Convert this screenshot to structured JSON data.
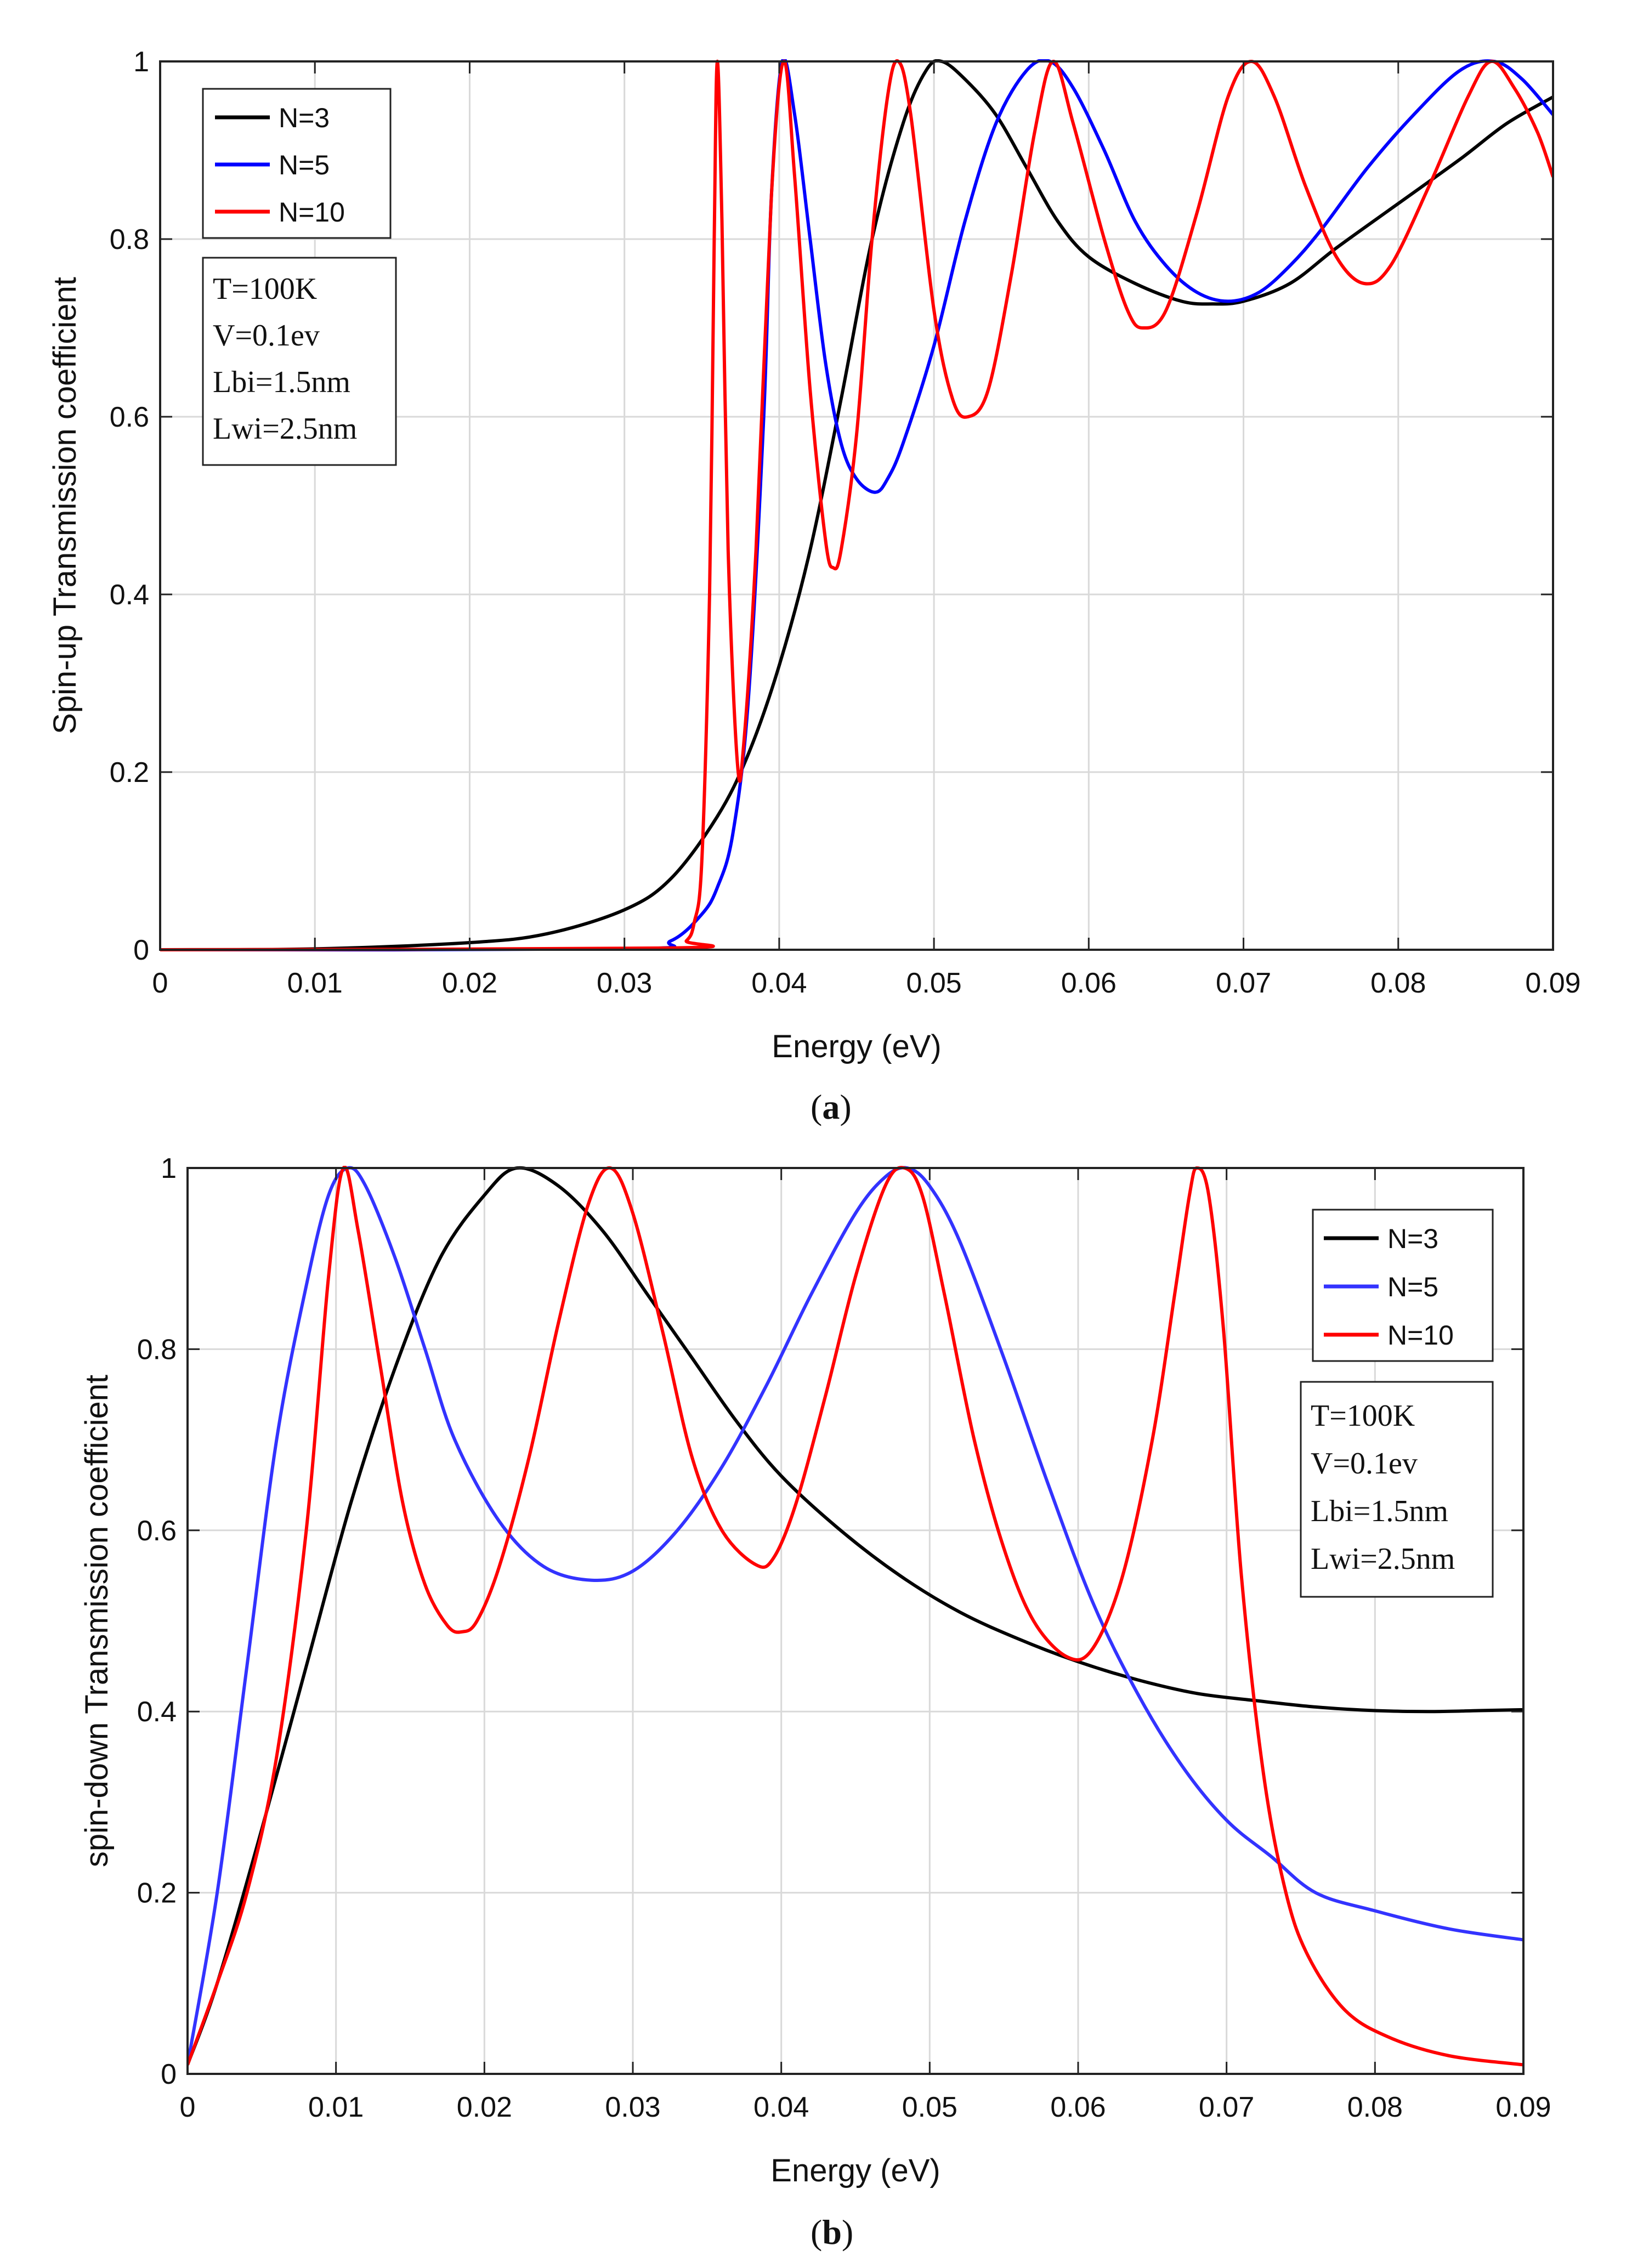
{
  "chart_data": [
    {
      "id": "a",
      "type": "line",
      "caption_label": "a",
      "xlabel": "Energy (eV)",
      "ylabel": "Spin-up Transmission coefficient",
      "xlim": [
        0,
        0.09
      ],
      "ylim": [
        0,
        1
      ],
      "x_ticks": [
        "0",
        "0.01",
        "0.02",
        "0.03",
        "0.04",
        "0.05",
        "0.06",
        "0.07",
        "0.08",
        "0.09"
      ],
      "y_ticks": [
        "0",
        "0.2",
        "0.4",
        "0.6",
        "0.8",
        "1"
      ],
      "grid": true,
      "legend_position": "top-left",
      "legend": [
        "N=3",
        "N=5",
        "N=10"
      ],
      "parameters": [
        "T=100K",
        "V=0.1ev",
        "Lbi=1.5nm",
        "Lwi=2.5nm"
      ],
      "series": [
        {
          "name": "N=3",
          "color": "#000000",
          "points": [
            [
              0,
              0
            ],
            [
              0.01,
              0.001
            ],
            [
              0.02,
              0.008
            ],
            [
              0.025,
              0.018
            ],
            [
              0.03,
              0.045
            ],
            [
              0.033,
              0.08
            ],
            [
              0.036,
              0.15
            ],
            [
              0.038,
              0.22
            ],
            [
              0.04,
              0.32
            ],
            [
              0.042,
              0.45
            ],
            [
              0.044,
              0.62
            ],
            [
              0.046,
              0.8
            ],
            [
              0.048,
              0.93
            ],
            [
              0.0495,
              0.99
            ],
            [
              0.0505,
              1.0
            ],
            [
              0.052,
              0.98
            ],
            [
              0.054,
              0.94
            ],
            [
              0.056,
              0.88
            ],
            [
              0.058,
              0.82
            ],
            [
              0.06,
              0.78
            ],
            [
              0.063,
              0.75
            ],
            [
              0.066,
              0.73
            ],
            [
              0.068,
              0.727
            ],
            [
              0.07,
              0.73
            ],
            [
              0.073,
              0.75
            ],
            [
              0.076,
              0.79
            ],
            [
              0.08,
              0.84
            ],
            [
              0.084,
              0.89
            ],
            [
              0.087,
              0.93
            ],
            [
              0.09,
              0.96
            ]
          ]
        },
        {
          "name": "N=5",
          "color": "#0000ff",
          "points": [
            [
              0,
              0
            ],
            [
              0.03,
              0.001
            ],
            [
              0.033,
              0.01
            ],
            [
              0.035,
              0.04
            ],
            [
              0.036,
              0.07
            ],
            [
              0.037,
              0.13
            ],
            [
              0.038,
              0.28
            ],
            [
              0.039,
              0.6
            ],
            [
              0.0395,
              0.85
            ],
            [
              0.0402,
              1.0
            ],
            [
              0.041,
              0.94
            ],
            [
              0.042,
              0.8
            ],
            [
              0.043,
              0.66
            ],
            [
              0.044,
              0.57
            ],
            [
              0.045,
              0.53
            ],
            [
              0.0462,
              0.515
            ],
            [
              0.047,
              0.53
            ],
            [
              0.048,
              0.57
            ],
            [
              0.05,
              0.68
            ],
            [
              0.052,
              0.82
            ],
            [
              0.054,
              0.93
            ],
            [
              0.056,
              0.99
            ],
            [
              0.0575,
              1.0
            ],
            [
              0.059,
              0.97
            ],
            [
              0.061,
              0.9
            ],
            [
              0.063,
              0.82
            ],
            [
              0.065,
              0.77
            ],
            [
              0.067,
              0.74
            ],
            [
              0.069,
              0.73
            ],
            [
              0.071,
              0.74
            ],
            [
              0.073,
              0.77
            ],
            [
              0.075,
              0.81
            ],
            [
              0.078,
              0.88
            ],
            [
              0.081,
              0.94
            ],
            [
              0.084,
              0.99
            ],
            [
              0.0862,
              1.0
            ],
            [
              0.088,
              0.98
            ],
            [
              0.09,
              0.94
            ]
          ]
        },
        {
          "name": "N=10",
          "color": "#ff0000",
          "points": [
            [
              0,
              0
            ],
            [
              0.033,
              0.002
            ],
            [
              0.034,
              0.01
            ],
            [
              0.0345,
              0.03
            ],
            [
              0.035,
              0.1
            ],
            [
              0.0355,
              0.4
            ],
            [
              0.0358,
              0.8
            ],
            [
              0.036,
              1.0
            ],
            [
              0.0363,
              0.82
            ],
            [
              0.0367,
              0.45
            ],
            [
              0.0373,
              0.21
            ],
            [
              0.0377,
              0.23
            ],
            [
              0.0385,
              0.45
            ],
            [
              0.0395,
              0.85
            ],
            [
              0.0403,
              1.0
            ],
            [
              0.041,
              0.87
            ],
            [
              0.042,
              0.63
            ],
            [
              0.043,
              0.46
            ],
            [
              0.0435,
              0.43
            ],
            [
              0.044,
              0.45
            ],
            [
              0.045,
              0.58
            ],
            [
              0.046,
              0.8
            ],
            [
              0.047,
              0.96
            ],
            [
              0.0477,
              1.0
            ],
            [
              0.0485,
              0.94
            ],
            [
              0.05,
              0.72
            ],
            [
              0.0512,
              0.62
            ],
            [
              0.0522,
              0.6
            ],
            [
              0.0535,
              0.63
            ],
            [
              0.055,
              0.76
            ],
            [
              0.0565,
              0.92
            ],
            [
              0.0577,
              1.0
            ],
            [
              0.059,
              0.93
            ],
            [
              0.061,
              0.8
            ],
            [
              0.0625,
              0.72
            ],
            [
              0.0635,
              0.7
            ],
            [
              0.065,
              0.72
            ],
            [
              0.067,
              0.83
            ],
            [
              0.069,
              0.96
            ],
            [
              0.0705,
              1.0
            ],
            [
              0.072,
              0.96
            ],
            [
              0.074,
              0.86
            ],
            [
              0.076,
              0.78
            ],
            [
              0.0778,
              0.75
            ],
            [
              0.0795,
              0.77
            ],
            [
              0.082,
              0.86
            ],
            [
              0.0845,
              0.96
            ],
            [
              0.086,
              1.0
            ],
            [
              0.0875,
              0.97
            ],
            [
              0.089,
              0.92
            ],
            [
              0.09,
              0.87
            ]
          ]
        }
      ]
    },
    {
      "id": "b",
      "type": "line",
      "caption_label": "b",
      "xlabel": "Energy (eV)",
      "ylabel": "spin-down Transmission coefficient",
      "xlim": [
        0,
        0.09
      ],
      "ylim": [
        0,
        1
      ],
      "x_ticks": [
        "0",
        "0.01",
        "0.02",
        "0.03",
        "0.04",
        "0.05",
        "0.06",
        "0.07",
        "0.08",
        "0.09"
      ],
      "y_ticks": [
        "0",
        "0.2",
        "0.4",
        "0.6",
        "0.8",
        "1"
      ],
      "grid": true,
      "legend_position": "top-right",
      "legend": [
        "N=3",
        "N=5",
        "N=10"
      ],
      "parameters": [
        "T=100K",
        "V=0.1ev",
        "Lbi=1.5nm",
        "Lwi=2.5nm"
      ],
      "series": [
        {
          "name": "N=3",
          "color": "#000000",
          "points": [
            [
              0,
              0.01
            ],
            [
              0.002,
              0.1
            ],
            [
              0.005,
              0.27
            ],
            [
              0.008,
              0.45
            ],
            [
              0.011,
              0.63
            ],
            [
              0.014,
              0.78
            ],
            [
              0.017,
              0.9
            ],
            [
              0.02,
              0.97
            ],
            [
              0.0222,
              1.0
            ],
            [
              0.025,
              0.98
            ],
            [
              0.028,
              0.93
            ],
            [
              0.031,
              0.86
            ],
            [
              0.034,
              0.79
            ],
            [
              0.037,
              0.72
            ],
            [
              0.04,
              0.66
            ],
            [
              0.044,
              0.6
            ],
            [
              0.048,
              0.55
            ],
            [
              0.052,
              0.51
            ],
            [
              0.056,
              0.48
            ],
            [
              0.06,
              0.455
            ],
            [
              0.064,
              0.435
            ],
            [
              0.068,
              0.42
            ],
            [
              0.072,
              0.412
            ],
            [
              0.076,
              0.405
            ],
            [
              0.08,
              0.401
            ],
            [
              0.084,
              0.4
            ],
            [
              0.087,
              0.401
            ],
            [
              0.09,
              0.402
            ]
          ]
        },
        {
          "name": "N=5",
          "color": "#3333ff",
          "points": [
            [
              0,
              0.01
            ],
            [
              0.002,
              0.2
            ],
            [
              0.004,
              0.45
            ],
            [
              0.006,
              0.7
            ],
            [
              0.008,
              0.87
            ],
            [
              0.0095,
              0.97
            ],
            [
              0.0108,
              1.0
            ],
            [
              0.012,
              0.98
            ],
            [
              0.014,
              0.9
            ],
            [
              0.016,
              0.8
            ],
            [
              0.018,
              0.7
            ],
            [
              0.021,
              0.61
            ],
            [
              0.024,
              0.56
            ],
            [
              0.0272,
              0.545
            ],
            [
              0.03,
              0.555
            ],
            [
              0.033,
              0.6
            ],
            [
              0.036,
              0.67
            ],
            [
              0.039,
              0.76
            ],
            [
              0.042,
              0.86
            ],
            [
              0.045,
              0.95
            ],
            [
              0.047,
              0.99
            ],
            [
              0.0485,
              1.0
            ],
            [
              0.05,
              0.98
            ],
            [
              0.052,
              0.92
            ],
            [
              0.055,
              0.79
            ],
            [
              0.058,
              0.65
            ],
            [
              0.061,
              0.52
            ],
            [
              0.064,
              0.42
            ],
            [
              0.067,
              0.34
            ],
            [
              0.07,
              0.28
            ],
            [
              0.073,
              0.24
            ],
            [
              0.076,
              0.2
            ],
            [
              0.08,
              0.18
            ],
            [
              0.085,
              0.16
            ],
            [
              0.09,
              0.148
            ]
          ]
        },
        {
          "name": "N=10",
          "color": "#ff0000",
          "points": [
            [
              0,
              0.01
            ],
            [
              0.002,
              0.1
            ],
            [
              0.004,
              0.2
            ],
            [
              0.006,
              0.35
            ],
            [
              0.008,
              0.6
            ],
            [
              0.0095,
              0.88
            ],
            [
              0.0105,
              1.0
            ],
            [
              0.0115,
              0.93
            ],
            [
              0.013,
              0.78
            ],
            [
              0.0145,
              0.63
            ],
            [
              0.016,
              0.54
            ],
            [
              0.0175,
              0.495
            ],
            [
              0.0185,
              0.488
            ],
            [
              0.0195,
              0.5
            ],
            [
              0.021,
              0.56
            ],
            [
              0.023,
              0.68
            ],
            [
              0.025,
              0.83
            ],
            [
              0.027,
              0.96
            ],
            [
              0.0285,
              1.0
            ],
            [
              0.03,
              0.95
            ],
            [
              0.032,
              0.82
            ],
            [
              0.034,
              0.68
            ],
            [
              0.036,
              0.6
            ],
            [
              0.0383,
              0.562
            ],
            [
              0.0395,
              0.57
            ],
            [
              0.041,
              0.63
            ],
            [
              0.043,
              0.75
            ],
            [
              0.045,
              0.88
            ],
            [
              0.047,
              0.98
            ],
            [
              0.0483,
              1.0
            ],
            [
              0.0495,
              0.97
            ],
            [
              0.051,
              0.86
            ],
            [
              0.053,
              0.7
            ],
            [
              0.055,
              0.58
            ],
            [
              0.057,
              0.5
            ],
            [
              0.0593,
              0.46
            ],
            [
              0.061,
              0.47
            ],
            [
              0.063,
              0.55
            ],
            [
              0.065,
              0.7
            ],
            [
              0.0665,
              0.86
            ],
            [
              0.0675,
              0.97
            ],
            [
              0.068,
              1.0
            ],
            [
              0.0688,
              0.97
            ],
            [
              0.0698,
              0.82
            ],
            [
              0.071,
              0.55
            ],
            [
              0.0725,
              0.33
            ],
            [
              0.074,
              0.2
            ],
            [
              0.0755,
              0.13
            ],
            [
              0.078,
              0.07
            ],
            [
              0.081,
              0.04
            ],
            [
              0.085,
              0.02
            ],
            [
              0.09,
              0.01
            ]
          ]
        }
      ]
    }
  ]
}
